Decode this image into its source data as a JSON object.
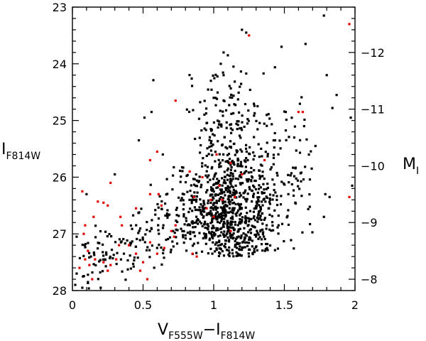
{
  "chart_data": {
    "type": "scatter",
    "title": "",
    "xlabel": {
      "main": "V",
      "sub1": "F555W",
      "minus": "−I",
      "sub2": "F814W"
    },
    "ylabel_left": {
      "main": "I",
      "sub": "F814W"
    },
    "ylabel_right": {
      "main": "M",
      "sub": "I"
    },
    "xlim": [
      0,
      2
    ],
    "ylim_left": [
      28,
      23
    ],
    "ylim_right": [
      -7.8,
      -12.8
    ],
    "x_ticks_major": [
      0,
      0.5,
      1,
      1.5,
      2
    ],
    "x_tick_labels": [
      "0",
      "0.5",
      "1",
      "1.5",
      "2"
    ],
    "y_ticks_major": [
      23,
      24,
      25,
      26,
      27,
      28
    ],
    "y_tick_labels": [
      "23",
      "24",
      "25",
      "26",
      "27",
      "28"
    ],
    "y2_ticks_major": [
      -8,
      -9,
      -10,
      -11,
      -12
    ],
    "y2_tick_labels": [
      "−8",
      "−9",
      "−10",
      "−11",
      "−12"
    ],
    "grid": false,
    "series": [
      {
        "color": "#000000",
        "generated_points": true,
        "points": [
          [
            1.07,
            23.8
          ],
          [
            1.1,
            23.85
          ],
          [
            1.05,
            24.0
          ],
          [
            1.2,
            23.4
          ],
          [
            1.23,
            23.45
          ],
          [
            1.14,
            24.05
          ],
          [
            1.0,
            24.6
          ],
          [
            1.07,
            24.2
          ],
          [
            0.98,
            24.3
          ],
          [
            1.48,
            23.7
          ],
          [
            1.65,
            23.65
          ],
          [
            1.8,
            24.2
          ],
          [
            1.87,
            24.55
          ],
          [
            1.91,
            23.0
          ],
          [
            1.83,
            23.0
          ],
          [
            1.78,
            23.15
          ],
          [
            1.84,
            24.78
          ],
          [
            1.99,
            24.05
          ],
          [
            1.97,
            24.95
          ],
          [
            1.98,
            26.15
          ],
          [
            1.82,
            26.35
          ],
          [
            1.79,
            26.3
          ],
          [
            1.78,
            26.7
          ],
          [
            1.64,
            25.1
          ],
          [
            1.72,
            25.45
          ],
          [
            1.57,
            25.3
          ],
          [
            1.51,
            24.85
          ],
          [
            0.51,
            24.95
          ],
          [
            0.56,
            24.85
          ],
          [
            0.64,
            25.6
          ],
          [
            0.47,
            25.35
          ],
          [
            0.3,
            25.95
          ],
          [
            0.1,
            26.3
          ],
          [
            0.03,
            27.05
          ],
          [
            0.01,
            27.55
          ],
          [
            0.03,
            27.7
          ],
          [
            0.11,
            27.85
          ],
          [
            0.07,
            27.95
          ],
          [
            0.2,
            27.95
          ],
          [
            0.02,
            27.9
          ]
        ]
      },
      {
        "color": "#e00000",
        "points": [
          [
            1.25,
            23.5
          ],
          [
            1.96,
            23.3
          ],
          [
            0.73,
            24.65
          ],
          [
            1.6,
            24.85
          ],
          [
            1.63,
            24.85
          ],
          [
            0.6,
            25.55
          ],
          [
            0.55,
            25.7
          ],
          [
            0.07,
            26.25
          ],
          [
            0.27,
            26.1
          ],
          [
            0.25,
            26.5
          ],
          [
            0.18,
            26.43
          ],
          [
            0.22,
            26.45
          ],
          [
            0.15,
            26.7
          ],
          [
            0.09,
            26.85
          ],
          [
            0.34,
            26.7
          ],
          [
            0.35,
            26.85
          ],
          [
            0.45,
            26.55
          ],
          [
            0.55,
            26.3
          ],
          [
            0.61,
            26.3
          ],
          [
            0.63,
            26.5
          ],
          [
            0.7,
            26.95
          ],
          [
            0.73,
            26.85
          ],
          [
            0.83,
            25.9
          ],
          [
            0.86,
            26.35
          ],
          [
            0.95,
            26.55
          ],
          [
            0.98,
            26.4
          ],
          [
            1.04,
            26.15
          ],
          [
            1.06,
            26.4
          ],
          [
            1.15,
            26.35
          ],
          [
            1.0,
            26.7
          ],
          [
            1.12,
            26.95
          ],
          [
            0.72,
            27.05
          ],
          [
            0.85,
            27.35
          ],
          [
            0.88,
            27.4
          ],
          [
            0.55,
            27.15
          ],
          [
            0.6,
            27.35
          ],
          [
            0.65,
            27.25
          ],
          [
            0.5,
            27.5
          ],
          [
            0.45,
            27.35
          ],
          [
            0.4,
            27.2
          ],
          [
            0.33,
            27.2
          ],
          [
            0.31,
            27.45
          ],
          [
            0.27,
            27.55
          ],
          [
            0.25,
            27.65
          ],
          [
            0.22,
            27.5
          ],
          [
            0.16,
            27.45
          ],
          [
            0.12,
            27.55
          ],
          [
            0.09,
            27.45
          ],
          [
            0.05,
            27.6
          ],
          [
            0.08,
            27.0
          ],
          [
            0.11,
            27.3
          ],
          [
            0.14,
            27.8
          ],
          [
            0.53,
            27.8
          ],
          [
            0.48,
            27.65
          ],
          [
            1.12,
            25.75
          ],
          [
            1.36,
            25.7
          ],
          [
            1.2,
            25.95
          ],
          [
            1.96,
            26.35
          ],
          [
            1.02,
            25.6
          ],
          [
            0.92,
            26.0
          ]
        ]
      }
    ]
  }
}
